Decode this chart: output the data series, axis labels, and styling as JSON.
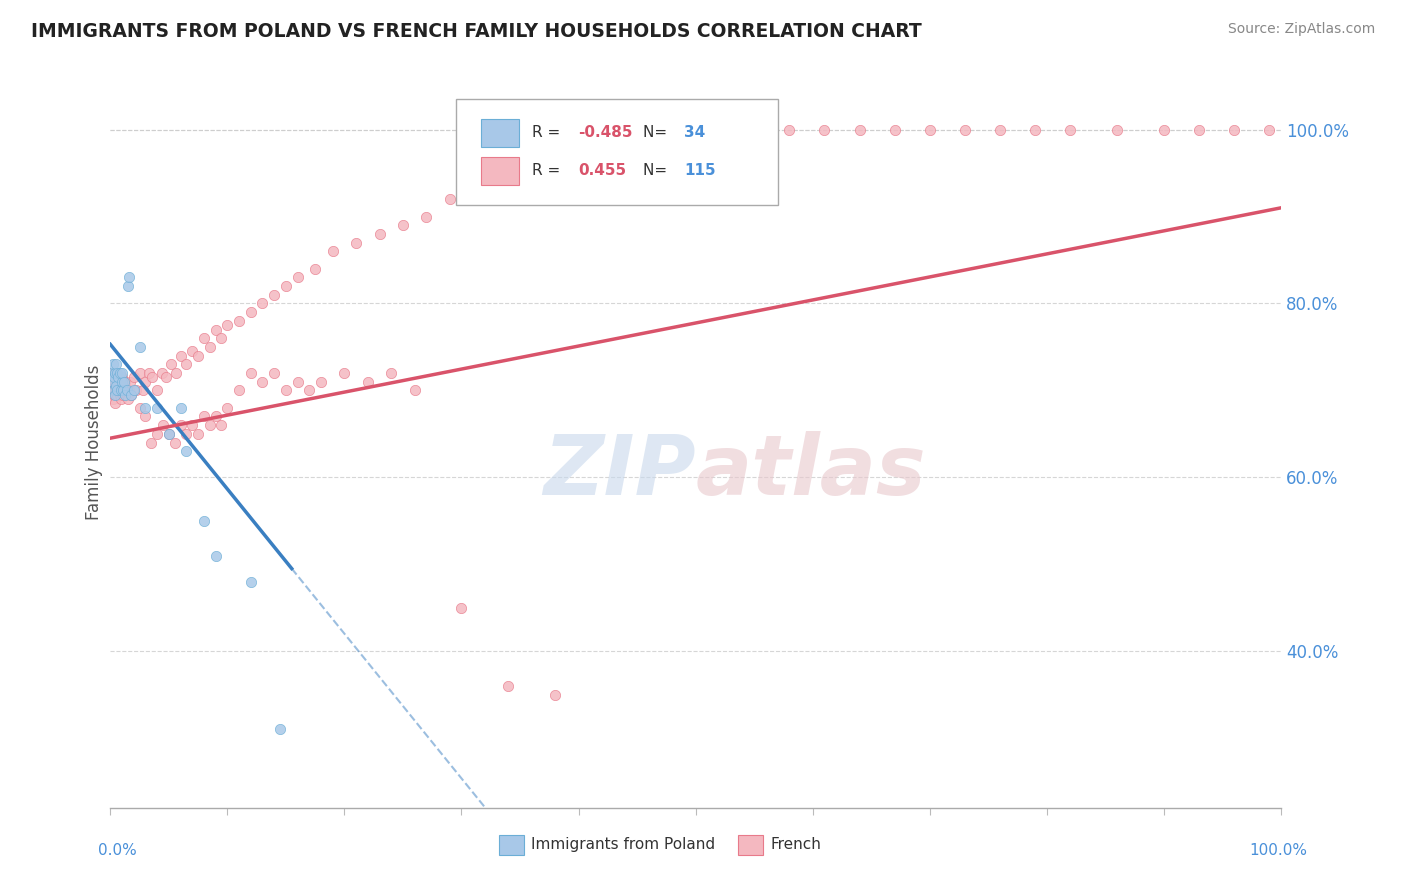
{
  "title": "IMMIGRANTS FROM POLAND VS FRENCH FAMILY HOUSEHOLDS CORRELATION CHART",
  "source": "Source: ZipAtlas.com",
  "ylabel": "Family Households",
  "r_blue": -0.485,
  "n_blue": 34,
  "r_pink": 0.455,
  "n_pink": 115,
  "blue_color": "#a8c8e8",
  "blue_edge_color": "#6baed6",
  "pink_color": "#f4b8c0",
  "pink_edge_color": "#e87a8a",
  "blue_line_color": "#3a7fc1",
  "pink_line_color": "#d9536a",
  "watermark_color": "#d0dff0",
  "background_color": "#ffffff",
  "yticks": [
    0.4,
    0.6,
    0.8,
    1.0
  ],
  "ytick_labels": [
    "40.0%",
    "60.0%",
    "80.0%",
    "100.0%"
  ],
  "xlim": [
    0.0,
    1.0
  ],
  "ylim": [
    0.22,
    1.06
  ],
  "blue_x": [
    0.001,
    0.002,
    0.002,
    0.003,
    0.003,
    0.004,
    0.004,
    0.005,
    0.005,
    0.006,
    0.006,
    0.007,
    0.008,
    0.009,
    0.01,
    0.01,
    0.011,
    0.012,
    0.013,
    0.014,
    0.015,
    0.016,
    0.018,
    0.02,
    0.025,
    0.03,
    0.04,
    0.05,
    0.06,
    0.065,
    0.08,
    0.09,
    0.12,
    0.145
  ],
  "blue_y": [
    0.72,
    0.71,
    0.73,
    0.7,
    0.715,
    0.695,
    0.72,
    0.705,
    0.73,
    0.7,
    0.72,
    0.715,
    0.72,
    0.7,
    0.71,
    0.72,
    0.7,
    0.71,
    0.695,
    0.7,
    0.82,
    0.83,
    0.695,
    0.7,
    0.75,
    0.68,
    0.68,
    0.65,
    0.68,
    0.63,
    0.55,
    0.51,
    0.48,
    0.31
  ],
  "pink_x": [
    0.001,
    0.002,
    0.002,
    0.003,
    0.003,
    0.004,
    0.004,
    0.005,
    0.005,
    0.006,
    0.006,
    0.007,
    0.007,
    0.008,
    0.008,
    0.009,
    0.01,
    0.01,
    0.011,
    0.012,
    0.013,
    0.014,
    0.015,
    0.016,
    0.017,
    0.018,
    0.02,
    0.022,
    0.025,
    0.028,
    0.03,
    0.033,
    0.036,
    0.04,
    0.044,
    0.048,
    0.052,
    0.056,
    0.06,
    0.065,
    0.07,
    0.075,
    0.08,
    0.085,
    0.09,
    0.095,
    0.1,
    0.11,
    0.12,
    0.13,
    0.14,
    0.15,
    0.16,
    0.175,
    0.19,
    0.21,
    0.23,
    0.25,
    0.27,
    0.29,
    0.31,
    0.34,
    0.36,
    0.38,
    0.4,
    0.43,
    0.46,
    0.49,
    0.52,
    0.55,
    0.58,
    0.61,
    0.64,
    0.67,
    0.7,
    0.73,
    0.76,
    0.79,
    0.82,
    0.86,
    0.9,
    0.93,
    0.96,
    0.99,
    0.025,
    0.03,
    0.035,
    0.04,
    0.045,
    0.05,
    0.055,
    0.06,
    0.065,
    0.07,
    0.075,
    0.08,
    0.085,
    0.09,
    0.095,
    0.1,
    0.11,
    0.12,
    0.13,
    0.14,
    0.15,
    0.16,
    0.17,
    0.18,
    0.2,
    0.22,
    0.24,
    0.26,
    0.3,
    0.34,
    0.38
  ],
  "pink_y": [
    0.7,
    0.69,
    0.72,
    0.695,
    0.71,
    0.685,
    0.705,
    0.7,
    0.72,
    0.695,
    0.715,
    0.7,
    0.71,
    0.695,
    0.705,
    0.69,
    0.7,
    0.715,
    0.695,
    0.7,
    0.71,
    0.695,
    0.69,
    0.7,
    0.71,
    0.695,
    0.715,
    0.7,
    0.72,
    0.7,
    0.71,
    0.72,
    0.715,
    0.7,
    0.72,
    0.715,
    0.73,
    0.72,
    0.74,
    0.73,
    0.745,
    0.74,
    0.76,
    0.75,
    0.77,
    0.76,
    0.775,
    0.78,
    0.79,
    0.8,
    0.81,
    0.82,
    0.83,
    0.84,
    0.86,
    0.87,
    0.88,
    0.89,
    0.9,
    0.92,
    0.93,
    0.94,
    0.95,
    0.96,
    0.97,
    0.98,
    0.99,
    1.0,
    1.0,
    1.0,
    1.0,
    1.0,
    1.0,
    1.0,
    1.0,
    1.0,
    1.0,
    1.0,
    1.0,
    1.0,
    1.0,
    1.0,
    1.0,
    1.0,
    0.68,
    0.67,
    0.64,
    0.65,
    0.66,
    0.65,
    0.64,
    0.66,
    0.65,
    0.66,
    0.65,
    0.67,
    0.66,
    0.67,
    0.66,
    0.68,
    0.7,
    0.72,
    0.71,
    0.72,
    0.7,
    0.71,
    0.7,
    0.71,
    0.72,
    0.71,
    0.72,
    0.7,
    0.45,
    0.36,
    0.35
  ],
  "blue_line_x0": 0.0,
  "blue_line_y0": 0.753,
  "blue_line_x1": 0.155,
  "blue_line_y1": 0.495,
  "blue_line_solid_end": 0.155,
  "blue_line_dash_end": 1.0,
  "pink_line_x0": 0.0,
  "pink_line_y0": 0.645,
  "pink_line_x1": 1.0,
  "pink_line_y1": 0.91
}
